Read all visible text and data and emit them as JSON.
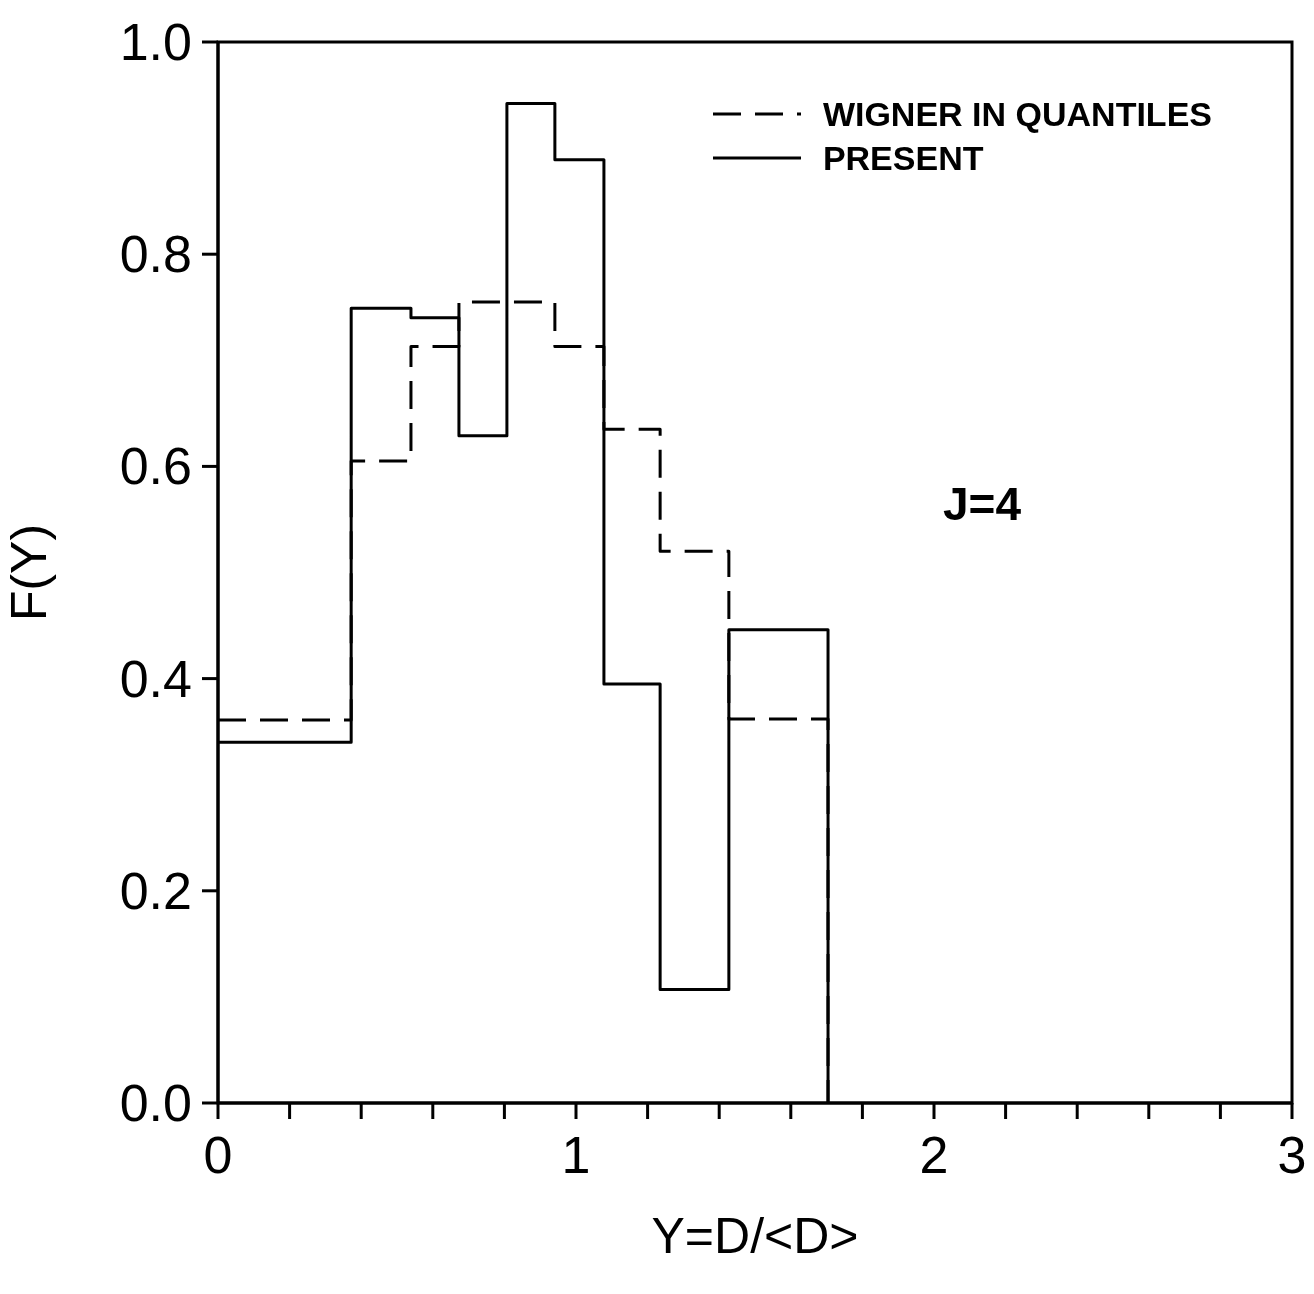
{
  "chart_data": {
    "type": "histogram",
    "xlabel": "Y=D/<D>",
    "ylabel": "F(Y)",
    "bins": [
      0,
      0.372,
      0.539,
      0.673,
      0.807,
      0.941,
      1.078,
      1.235,
      1.427,
      1.704
    ],
    "series": [
      {
        "name": "WIGNER IN QUANTILES",
        "color": "#000000",
        "line_style": "dashed",
        "values": [
          0.361,
          0.605,
          0.713,
          0.755,
          0.755,
          0.713,
          0.635,
          0.52,
          0.362
        ]
      },
      {
        "name": "PRESENT",
        "color": "#000000",
        "line_style": "solid",
        "values": [
          0.34,
          0.749,
          0.74,
          0.629,
          0.942,
          0.889,
          0.395,
          0.107,
          0.446
        ]
      }
    ],
    "xlim": [
      0,
      3
    ],
    "xticks": [
      0,
      {
        "value": 0.2,
        "label": null
      },
      {
        "value": 0.4,
        "label": null
      },
      {
        "value": 0.6,
        "label": null
      },
      {
        "value": 0.8,
        "label": null
      },
      1,
      {
        "value": 1.2,
        "label": null
      },
      {
        "value": 1.4,
        "label": null
      },
      {
        "value": 1.6,
        "label": null
      },
      {
        "value": 1.8,
        "label": null
      },
      2,
      {
        "value": 2.2,
        "label": null
      },
      {
        "value": 2.4,
        "label": null
      },
      {
        "value": 2.6,
        "label": null
      },
      {
        "value": 2.8,
        "label": null
      },
      3
    ],
    "ylim": [
      0,
      1
    ],
    "yticks": [
      {
        "value": 0,
        "label": "0.0"
      },
      {
        "value": 0.2,
        "label": "0.2"
      },
      {
        "value": 0.4,
        "label": "0.4"
      },
      {
        "value": 0.6,
        "label": "0.6"
      },
      {
        "value": 0.8,
        "label": "0.8"
      },
      {
        "value": 1,
        "label": "1.0"
      }
    ],
    "legend": "top right",
    "grid": false,
    "annotations": [
      "J=4"
    ]
  }
}
